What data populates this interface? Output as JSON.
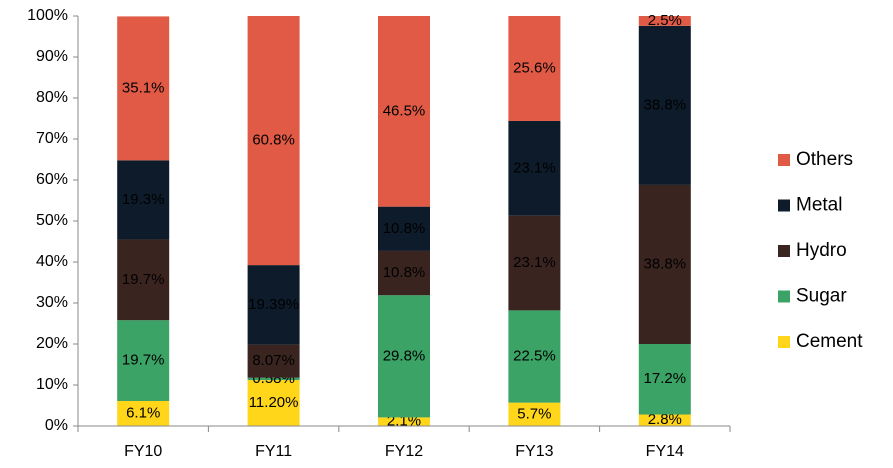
{
  "chart_data": {
    "type": "stacked_bar",
    "categories": [
      "FY10",
      "FY11",
      "FY12",
      "FY13",
      "FY14"
    ],
    "series": [
      {
        "name": "Cement",
        "color": "#ffd619",
        "values": [
          6.1,
          11.2,
          2.1,
          5.7,
          2.8
        ],
        "value_labels": [
          "6.1%",
          "11.20%",
          "2.1%",
          "5.7%",
          "2.8%"
        ]
      },
      {
        "name": "Sugar",
        "color": "#3aa365",
        "values": [
          19.7,
          0.58,
          29.8,
          22.5,
          17.2
        ],
        "value_labels": [
          "19.7%",
          "0.58%",
          "29.8%",
          "22.5%",
          "17.2%"
        ]
      },
      {
        "name": "Hydro",
        "color": "#3a2420",
        "values": [
          19.7,
          8.07,
          10.8,
          23.1,
          38.8
        ],
        "value_labels": [
          "19.7%",
          "8.07%",
          "10.8%",
          "23.1%",
          "38.8%"
        ]
      },
      {
        "name": "Metal",
        "color": "#0d1b2a",
        "values": [
          19.3,
          19.39,
          10.8,
          23.1,
          38.8
        ],
        "value_labels": [
          "19.3%",
          "19.39%",
          "10.8%",
          "23.1%",
          "38.8%"
        ]
      },
      {
        "name": "Others",
        "color": "#e05a45",
        "values": [
          35.1,
          60.8,
          46.5,
          25.6,
          2.5
        ],
        "value_labels": [
          "35.1%",
          "60.8%",
          "46.5%",
          "25.6%",
          "2.5%"
        ]
      }
    ],
    "ylim": [
      0,
      100
    ],
    "yticks": [
      {
        "value": 0,
        "label": "0%"
      },
      {
        "value": 10,
        "label": "10%"
      },
      {
        "value": 20,
        "label": "20%"
      },
      {
        "value": 30,
        "label": "30%"
      },
      {
        "value": 40,
        "label": "40%"
      },
      {
        "value": 50,
        "label": "50%"
      },
      {
        "value": 60,
        "label": "60%"
      },
      {
        "value": 70,
        "label": "70%"
      },
      {
        "value": 80,
        "label": "80%"
      },
      {
        "value": 90,
        "label": "90%"
      },
      {
        "value": 100,
        "label": "100%"
      }
    ],
    "legend": "right"
  }
}
